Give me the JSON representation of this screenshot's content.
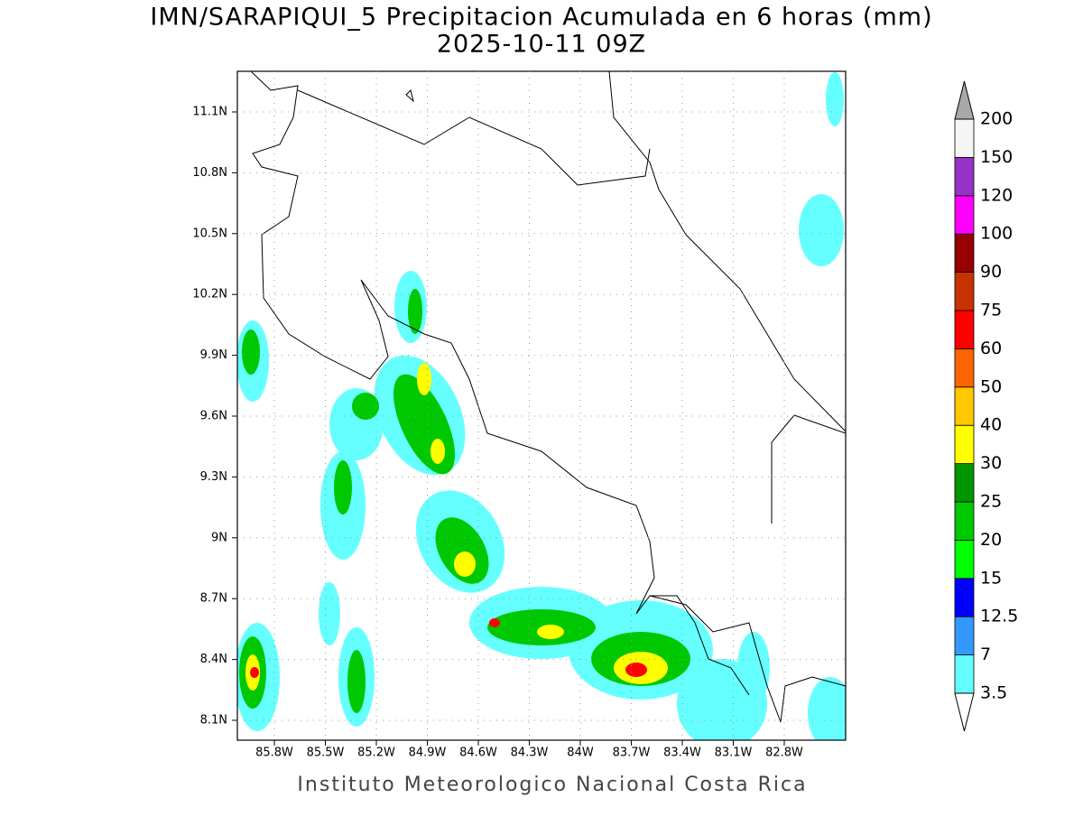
{
  "title": "IMN/SARAPIQUI_5 Precipitacion Acumulada en 6 horas (mm)",
  "subtitle": "2025-10-11 09Z",
  "lat_labels": [
    "11.1N",
    "10.8N",
    "10.5N",
    "10.2N",
    "9.9N",
    "9.6N",
    "9.3N",
    "9N",
    "8.7N",
    "8.4N",
    "8.1N"
  ],
  "lon_labels": [
    "85.8W",
    "85.5W",
    "85.2W",
    "84.9W",
    "84.6W",
    "84.3W",
    "84W",
    "83.7W",
    "83.4W",
    "83.1W",
    "82.8W"
  ],
  "colorbar": {
    "levels": [
      3.5,
      7,
      12.5,
      15,
      20,
      25,
      30,
      40,
      50,
      60,
      75,
      90,
      100,
      120,
      150,
      200
    ],
    "colors": [
      "#66ffff",
      "#3399ff",
      "#0000ff",
      "#00ff00",
      "#00c800",
      "#009600",
      "#ffff00",
      "#ffc800",
      "#ff6400",
      "#ff0000",
      "#c83200",
      "#960000",
      "#ff00ff",
      "#9632c8",
      "#f5f5f5"
    ],
    "below_color": "#ffffff",
    "above_color": "#a8a8a8"
  },
  "footer": "Instituto Meteorologico Nacional Costa Rica"
}
